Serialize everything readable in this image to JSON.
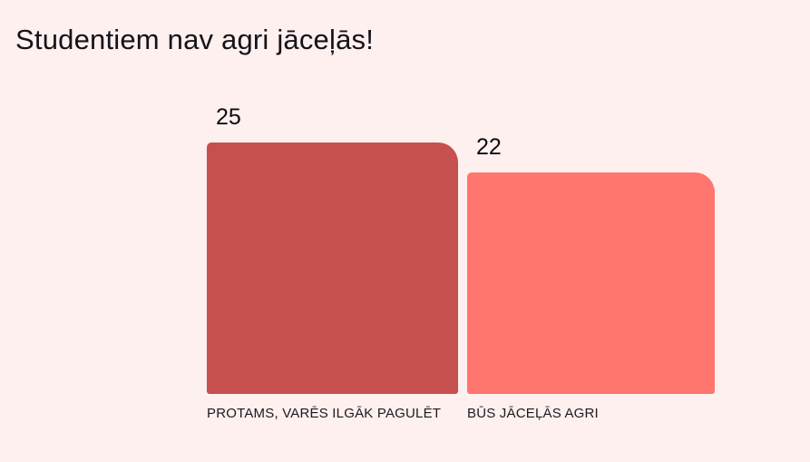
{
  "title": "Studentiem nav agri jāceļās!",
  "chart_data": {
    "type": "bar",
    "title": "Studentiem nav agri jāceļās!",
    "categories": [
      "PROTAMS, VARĒS ILGĀK PAGULĒT",
      "BŪS JĀCEĻĀS AGRI"
    ],
    "values": [
      25,
      22
    ],
    "value_labels": [
      "25",
      "22"
    ],
    "bar_colors": [
      "#c5504e",
      "#ff766e"
    ],
    "background_color": "#fdf0ee",
    "text_color": "#14121a",
    "orientation": "vertical",
    "ylim": [
      0,
      25
    ],
    "grid": false,
    "legend": "none",
    "axes_visible": false
  },
  "bars": [
    {
      "value": "25",
      "label": "PROTAMS, VARĒS ILGĀK PAGULĒT"
    },
    {
      "value": "22",
      "label": "BŪS JĀCEĻĀS AGRI"
    }
  ]
}
